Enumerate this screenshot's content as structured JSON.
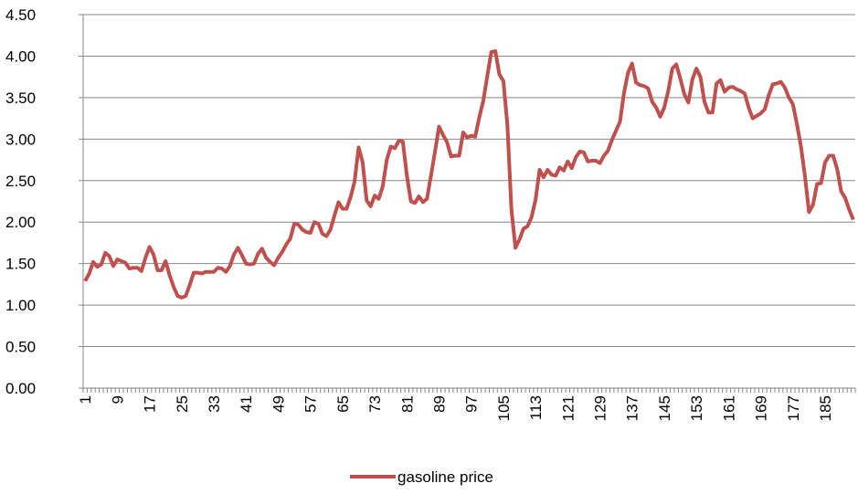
{
  "chart_data": {
    "type": "line",
    "categories": [
      "1",
      null,
      null,
      null,
      null,
      null,
      null,
      null,
      "9",
      null,
      null,
      null,
      null,
      null,
      null,
      null,
      "17",
      null,
      null,
      null,
      null,
      null,
      null,
      null,
      "25",
      null,
      null,
      null,
      null,
      null,
      null,
      null,
      "33",
      null,
      null,
      null,
      null,
      null,
      null,
      null,
      "41",
      null,
      null,
      null,
      null,
      null,
      null,
      null,
      "49",
      null,
      null,
      null,
      null,
      null,
      null,
      null,
      "57",
      null,
      null,
      null,
      null,
      null,
      null,
      null,
      "65",
      null,
      null,
      null,
      null,
      null,
      null,
      null,
      "73",
      null,
      null,
      null,
      null,
      null,
      null,
      null,
      "81",
      null,
      null,
      null,
      null,
      null,
      null,
      null,
      "89",
      null,
      null,
      null,
      null,
      null,
      null,
      null,
      "97",
      null,
      null,
      null,
      null,
      null,
      null,
      null,
      "105",
      null,
      null,
      null,
      null,
      null,
      null,
      null,
      "113",
      null,
      null,
      null,
      null,
      null,
      null,
      null,
      "121",
      null,
      null,
      null,
      null,
      null,
      null,
      null,
      "129",
      null,
      null,
      null,
      null,
      null,
      null,
      null,
      "137",
      null,
      null,
      null,
      null,
      null,
      null,
      null,
      "145",
      null,
      null,
      null,
      null,
      null,
      null,
      null,
      "153",
      null,
      null,
      null,
      null,
      null,
      null,
      null,
      "161",
      null,
      null,
      null,
      null,
      null,
      null,
      null,
      "169",
      null,
      null,
      null,
      null,
      null,
      null,
      null,
      "177",
      null,
      null,
      null,
      null,
      null,
      null,
      null,
      "185",
      null,
      null,
      null,
      null,
      null,
      null,
      null
    ],
    "series": [
      {
        "name": "gasoline price",
        "color": "#c0504d",
        "values": [
          1.29,
          1.38,
          1.52,
          1.46,
          1.49,
          1.63,
          1.59,
          1.47,
          1.55,
          1.53,
          1.51,
          1.44,
          1.45,
          1.45,
          1.41,
          1.57,
          1.7,
          1.61,
          1.42,
          1.42,
          1.53,
          1.36,
          1.22,
          1.11,
          1.09,
          1.11,
          1.24,
          1.39,
          1.39,
          1.38,
          1.4,
          1.4,
          1.4,
          1.45,
          1.44,
          1.4,
          1.47,
          1.61,
          1.69,
          1.6,
          1.5,
          1.49,
          1.5,
          1.62,
          1.68,
          1.57,
          1.52,
          1.48,
          1.57,
          1.64,
          1.73,
          1.8,
          1.98,
          1.97,
          1.91,
          1.88,
          1.87,
          2.0,
          1.98,
          1.86,
          1.83,
          1.91,
          2.08,
          2.24,
          2.16,
          2.16,
          2.3,
          2.49,
          2.9,
          2.72,
          2.26,
          2.19,
          2.32,
          2.28,
          2.43,
          2.75,
          2.91,
          2.89,
          2.98,
          2.97,
          2.56,
          2.25,
          2.23,
          2.31,
          2.24,
          2.28,
          2.56,
          2.85,
          3.15,
          3.05,
          2.96,
          2.79,
          2.8,
          2.8,
          3.08,
          3.02,
          3.04,
          3.03,
          3.26,
          3.46,
          3.76,
          4.05,
          4.06,
          3.78,
          3.7,
          3.17,
          2.15,
          1.69,
          1.79,
          1.92,
          1.95,
          2.06,
          2.27,
          2.63,
          2.54,
          2.63,
          2.57,
          2.56,
          2.66,
          2.62,
          2.73,
          2.65,
          2.78,
          2.85,
          2.84,
          2.73,
          2.74,
          2.74,
          2.71,
          2.8,
          2.86,
          2.99,
          3.1,
          3.21,
          3.56,
          3.8,
          3.91,
          3.68,
          3.65,
          3.64,
          3.61,
          3.45,
          3.38,
          3.27,
          3.38,
          3.58,
          3.85,
          3.9,
          3.73,
          3.54,
          3.44,
          3.72,
          3.85,
          3.75,
          3.45,
          3.32,
          3.32,
          3.67,
          3.71,
          3.57,
          3.62,
          3.63,
          3.6,
          3.58,
          3.55,
          3.38,
          3.25,
          3.28,
          3.31,
          3.36,
          3.53,
          3.66,
          3.67,
          3.69,
          3.62,
          3.5,
          3.42,
          3.18,
          2.91,
          2.55,
          2.12,
          2.21,
          2.46,
          2.47,
          2.72,
          2.8,
          2.8,
          2.64,
          2.37,
          2.29,
          2.15,
          2.03
        ]
      }
    ],
    "ylim": [
      0,
      4.5
    ],
    "yticks": [
      {
        "value": 0,
        "label": "0.00"
      },
      {
        "value": 0.5,
        "label": "0.50"
      },
      {
        "value": 1,
        "label": "1.00"
      },
      {
        "value": 1.5,
        "label": "1.50"
      },
      {
        "value": 2,
        "label": "2.00"
      },
      {
        "value": 2.5,
        "label": "2.50"
      },
      {
        "value": 3,
        "label": "3.00"
      },
      {
        "value": 3.5,
        "label": "3.50"
      },
      {
        "value": 4,
        "label": "4.00"
      },
      {
        "value": 4.5,
        "label": "4.50"
      }
    ],
    "grid": true,
    "legend": "bottom"
  }
}
